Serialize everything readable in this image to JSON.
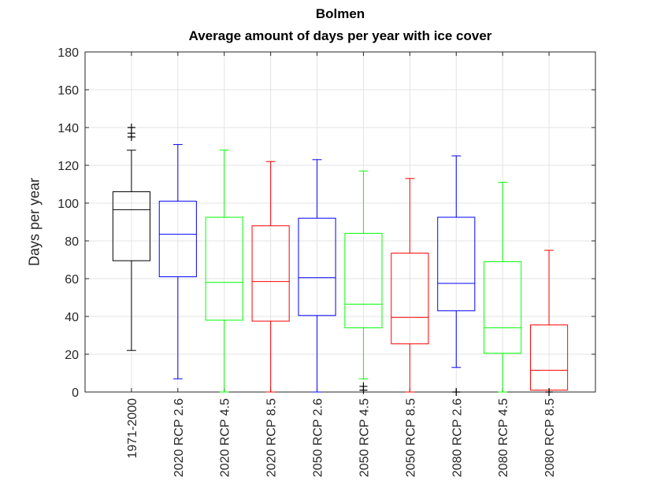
{
  "chart_data": {
    "type": "box",
    "title": "Bolmen",
    "subtitle": "Average amount of days per year with ice cover",
    "xlabel": "",
    "ylabel": "Days per year",
    "ylim": [
      0,
      180
    ],
    "yticks": [
      0,
      20,
      40,
      60,
      80,
      100,
      120,
      140,
      160,
      180
    ],
    "grid": true,
    "categories": [
      "1971-2000",
      "2020 RCP 2.6",
      "2020 RCP 4.5",
      "2020 RCP 8.5",
      "2050 RCP 2.6",
      "2050 RCP 4.5",
      "2050 RCP 8.5",
      "2080 RCP 2.6",
      "2080 RCP 4.5",
      "2080 RCP 8.5"
    ],
    "boxes": [
      {
        "whisker_low": 22,
        "q1": 69.5,
        "median": 96.5,
        "q3": 106,
        "whisker_high": 128,
        "outliers": [
          135,
          137,
          140
        ],
        "color": "#000000"
      },
      {
        "whisker_low": 7,
        "q1": 61,
        "median": 83.5,
        "q3": 101,
        "whisker_high": 131,
        "outliers": [],
        "color": "#0000ff"
      },
      {
        "whisker_low": 0,
        "q1": 38,
        "median": 58,
        "q3": 92.5,
        "whisker_high": 128,
        "outliers": [],
        "color": "#00ff00"
      },
      {
        "whisker_low": 0,
        "q1": 37.5,
        "median": 58.5,
        "q3": 88,
        "whisker_high": 122,
        "outliers": [],
        "color": "#ff0000"
      },
      {
        "whisker_low": 0,
        "q1": 40.5,
        "median": 60.5,
        "q3": 92,
        "whisker_high": 123,
        "outliers": [],
        "color": "#0000ff"
      },
      {
        "whisker_low": 7,
        "q1": 34,
        "median": 46.5,
        "q3": 84,
        "whisker_high": 117,
        "outliers": [
          1,
          3
        ],
        "color": "#00ff00"
      },
      {
        "whisker_low": 0,
        "q1": 25.5,
        "median": 39.5,
        "q3": 73.5,
        "whisker_high": 113,
        "outliers": [],
        "color": "#ff0000"
      },
      {
        "whisker_low": 13,
        "q1": 43,
        "median": 57.5,
        "q3": 92.5,
        "whisker_high": 125,
        "outliers": [
          0
        ],
        "color": "#0000ff"
      },
      {
        "whisker_low": 0,
        "q1": 20.5,
        "median": 34,
        "q3": 69,
        "whisker_high": 111,
        "outliers": [],
        "color": "#00ff00"
      },
      {
        "whisker_low": 0,
        "q1": 1,
        "median": 11.5,
        "q3": 35.5,
        "whisker_high": 75,
        "outliers": [
          0
        ],
        "color": "#ff0000"
      }
    ]
  }
}
